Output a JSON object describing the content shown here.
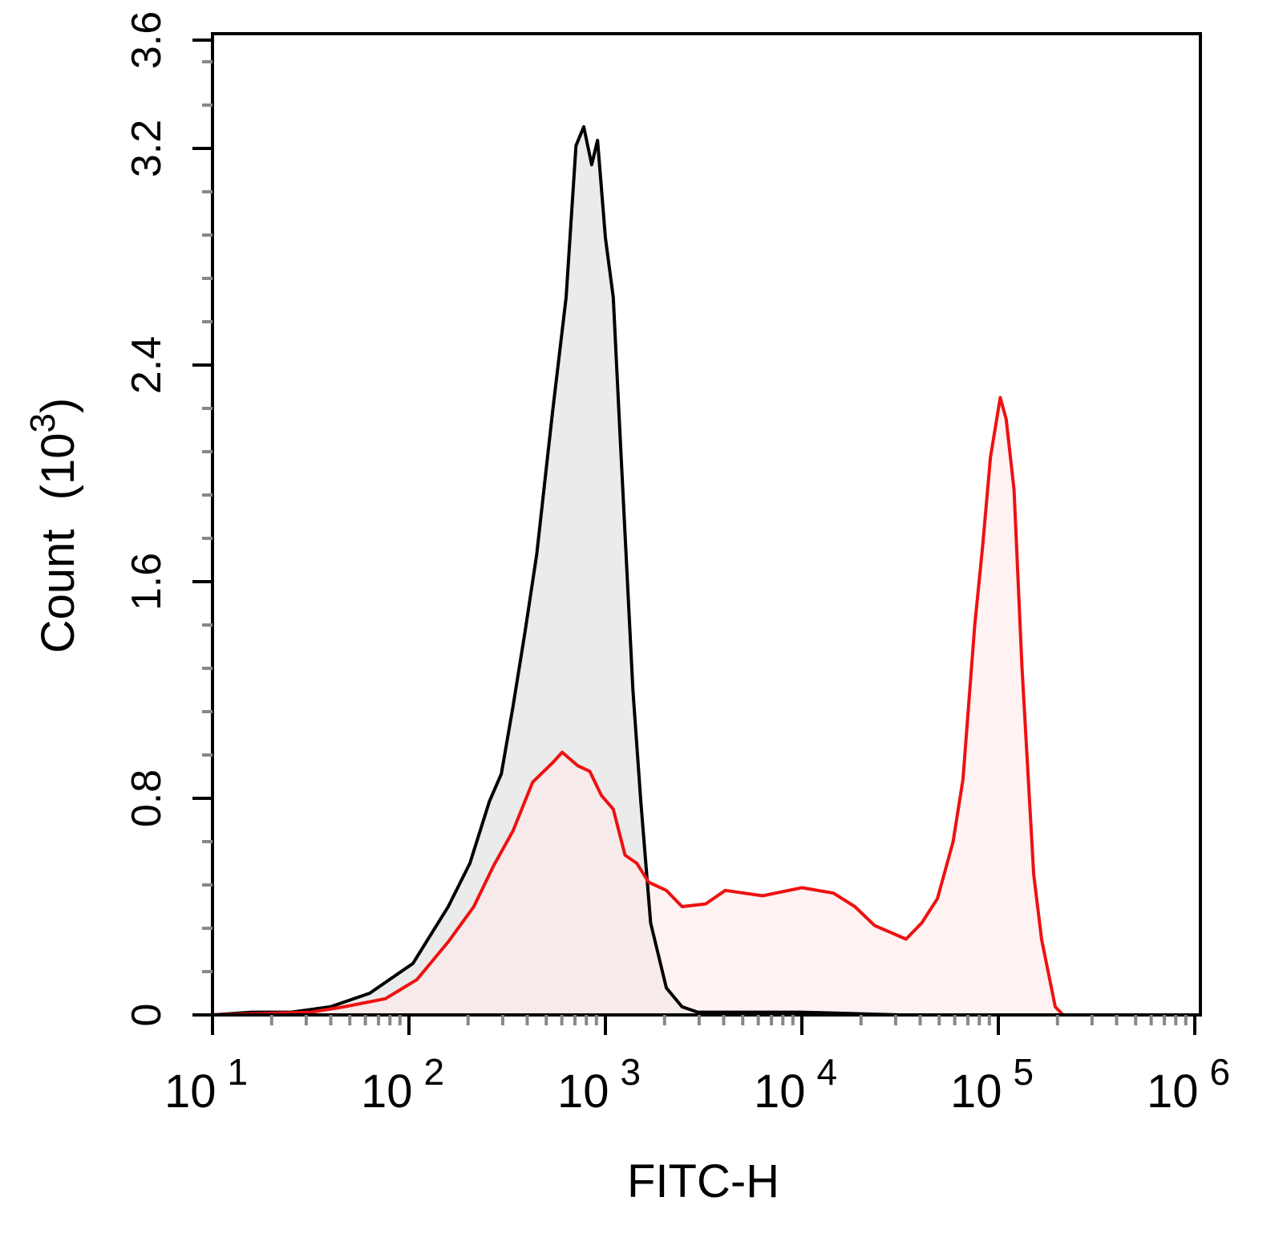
{
  "chart_data": {
    "type": "area",
    "title": "",
    "xlabel": "FITC-H",
    "ylabel": "Count",
    "ylabel_unit": "(10",
    "ylabel_unit_exp": "3",
    "ylabel_unit_close": ")",
    "x_scale": "log",
    "xlim": [
      10,
      1000000
    ],
    "ylim": [
      0,
      3.6
    ],
    "x_ticks": [
      {
        "base": "10",
        "exp": "1",
        "value": 10
      },
      {
        "base": "10",
        "exp": "2",
        "value": 100
      },
      {
        "base": "10",
        "exp": "3",
        "value": 1000
      },
      {
        "base": "10",
        "exp": "4",
        "value": 10000
      },
      {
        "base": "10",
        "exp": "5",
        "value": 100000
      },
      {
        "base": "10",
        "exp": "6",
        "value": 1000000
      }
    ],
    "y_ticks": [
      "0",
      "0.8",
      "1.6",
      "2.4",
      "3.2",
      "3.6"
    ],
    "y_tick_values": [
      0,
      0.8,
      1.6,
      2.4,
      3.2,
      3.6
    ],
    "grid": false,
    "legend": "none",
    "series": [
      {
        "color": "#000000",
        "fill": "#ebebeb",
        "points": [
          [
            1.0,
            0
          ],
          [
            1.2,
            0.01
          ],
          [
            1.4,
            0.01
          ],
          [
            1.6,
            0.03
          ],
          [
            1.8,
            0.08
          ],
          [
            2.02,
            0.19
          ],
          [
            2.2,
            0.4
          ],
          [
            2.31,
            0.56
          ],
          [
            2.41,
            0.79
          ],
          [
            2.47,
            0.89
          ],
          [
            2.53,
            1.14
          ],
          [
            2.59,
            1.41
          ],
          [
            2.65,
            1.7
          ],
          [
            2.73,
            2.22
          ],
          [
            2.8,
            2.65
          ],
          [
            2.85,
            3.21
          ],
          [
            2.89,
            3.28
          ],
          [
            2.93,
            3.14
          ],
          [
            2.96,
            3.23
          ],
          [
            3.0,
            2.87
          ],
          [
            3.04,
            2.65
          ],
          [
            3.07,
            2.21
          ],
          [
            3.14,
            1.2
          ],
          [
            3.18,
            0.79
          ],
          [
            3.23,
            0.34
          ],
          [
            3.31,
            0.1
          ],
          [
            3.39,
            0.03
          ],
          [
            3.47,
            0.01
          ],
          [
            4.0,
            0.01
          ],
          [
            4.5,
            0
          ],
          [
            5.0,
            0
          ]
        ]
      },
      {
        "color": "#ee1111",
        "fill": "#fde9e9",
        "points": [
          [
            1.0,
            0
          ],
          [
            1.5,
            0.01
          ],
          [
            1.67,
            0.03
          ],
          [
            1.88,
            0.06
          ],
          [
            2.04,
            0.13
          ],
          [
            2.2,
            0.27
          ],
          [
            2.33,
            0.4
          ],
          [
            2.43,
            0.55
          ],
          [
            2.53,
            0.68
          ],
          [
            2.63,
            0.86
          ],
          [
            2.73,
            0.93
          ],
          [
            2.78,
            0.97
          ],
          [
            2.86,
            0.92
          ],
          [
            2.92,
            0.9
          ],
          [
            2.98,
            0.81
          ],
          [
            3.04,
            0.76
          ],
          [
            3.1,
            0.59
          ],
          [
            3.16,
            0.56
          ],
          [
            3.22,
            0.49
          ],
          [
            3.31,
            0.46
          ],
          [
            3.39,
            0.4
          ],
          [
            3.51,
            0.41
          ],
          [
            3.61,
            0.46
          ],
          [
            3.8,
            0.44
          ],
          [
            4.0,
            0.47
          ],
          [
            4.16,
            0.45
          ],
          [
            4.27,
            0.4
          ],
          [
            4.37,
            0.33
          ],
          [
            4.53,
            0.28
          ],
          [
            4.61,
            0.34
          ],
          [
            4.69,
            0.43
          ],
          [
            4.77,
            0.64
          ],
          [
            4.82,
            0.87
          ],
          [
            4.88,
            1.44
          ],
          [
            4.92,
            1.73
          ],
          [
            4.96,
            2.06
          ],
          [
            5.01,
            2.28
          ],
          [
            5.04,
            2.2
          ],
          [
            5.08,
            1.94
          ],
          [
            5.12,
            1.29
          ],
          [
            5.18,
            0.52
          ],
          [
            5.22,
            0.28
          ],
          [
            5.29,
            0.03
          ],
          [
            5.33,
            0
          ]
        ]
      }
    ]
  }
}
